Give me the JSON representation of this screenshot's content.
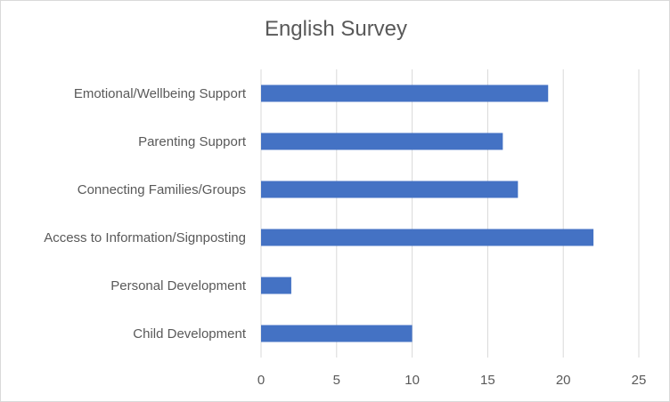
{
  "chart_data": {
    "type": "bar",
    "orientation": "horizontal",
    "title": "English Survey",
    "xlabel": "",
    "ylabel": "",
    "categories": [
      "Emotional/Wellbeing Support",
      "Parenting Support",
      "Connecting Families/Groups",
      "Access to Information/Signposting",
      "Personal Development",
      "Child Development"
    ],
    "values": [
      19,
      16,
      17,
      22,
      2,
      10
    ],
    "xlim": [
      0,
      25
    ],
    "xticks": [
      "0",
      "5",
      "10",
      "15",
      "20",
      "25"
    ],
    "grid": "vertical",
    "legend": "none",
    "bar_color": "#4472c4",
    "grid_color": "#d9d9d9"
  }
}
